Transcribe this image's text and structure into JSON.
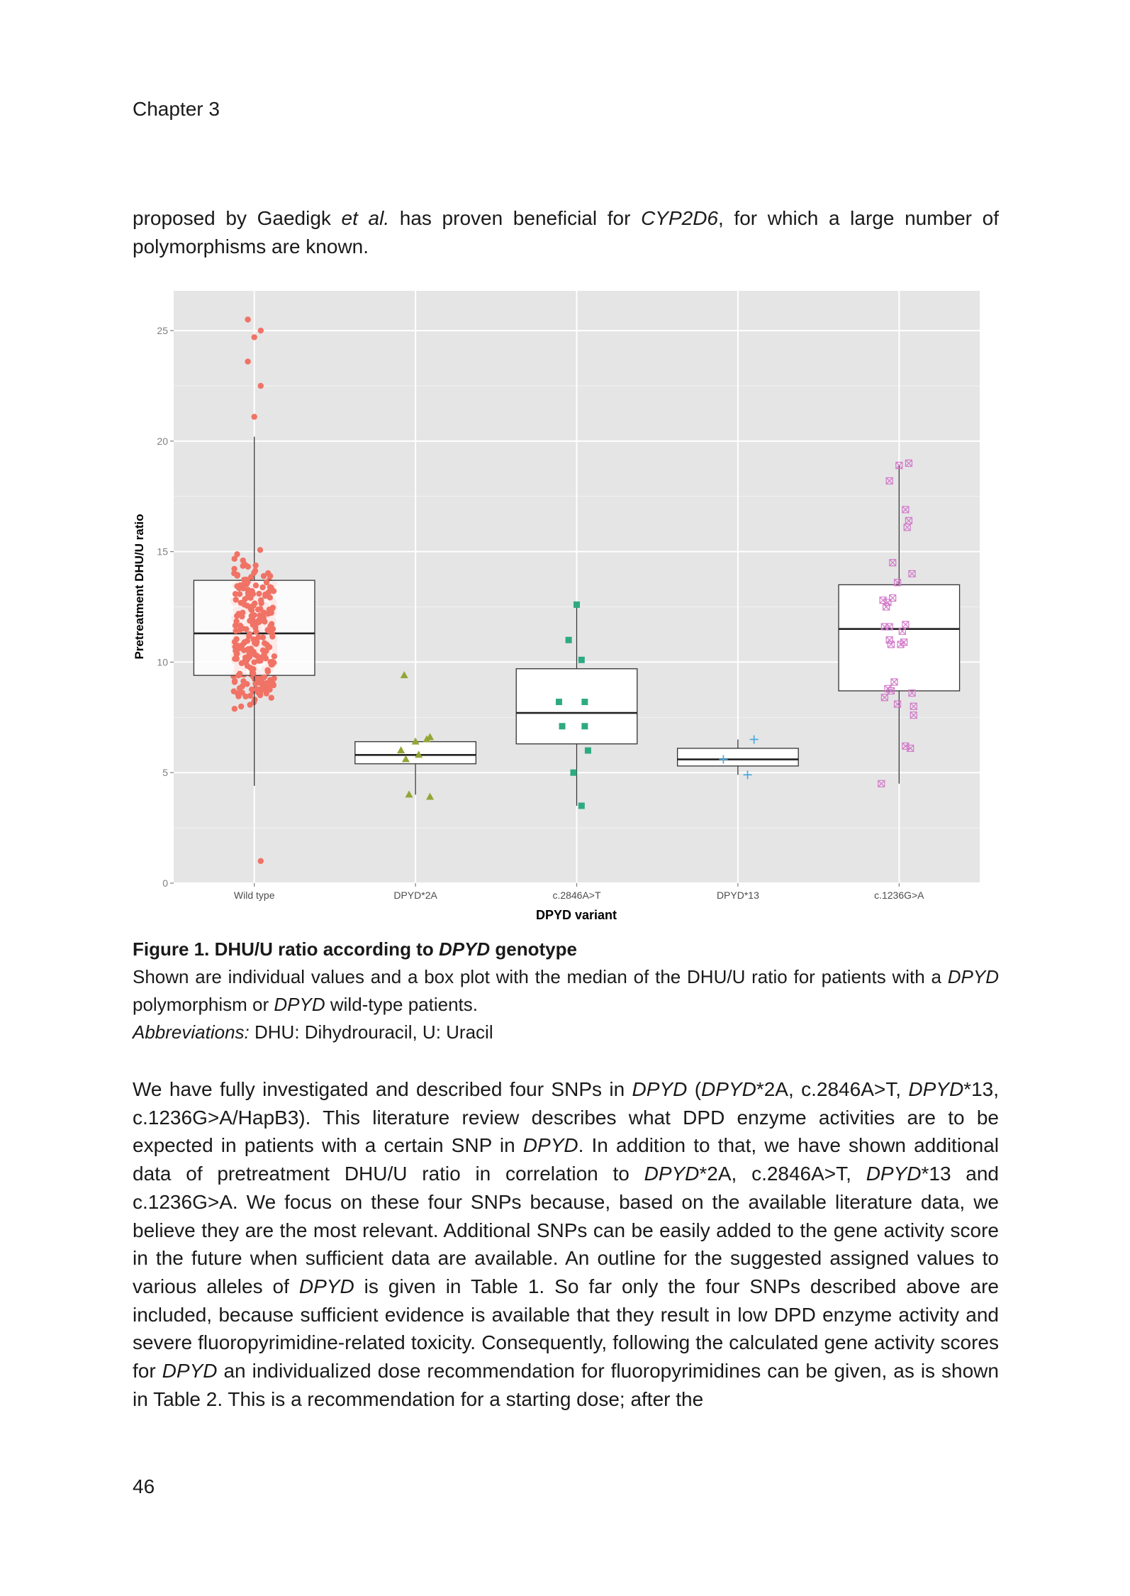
{
  "header": {
    "running_head": "Chapter 3"
  },
  "paragraph1": {
    "t1": "proposed by Gaedigk ",
    "i1": "et al.",
    "t2": " has proven beneficial for ",
    "i2": "CYP2D6",
    "t3": ", for which a large number of polymorphisms are known."
  },
  "caption": {
    "title_prefix": "Figure 1. DHU/U ratio according to ",
    "title_italic": "DPYD",
    "title_suffix": " genotype",
    "b1": "Shown are individual values and a box plot with the median of the DHU/U ratio for patients with a ",
    "b_i1": "DPYD",
    "b2": " polymorphism or ",
    "b_i2": "DPYD",
    "b3": " wild-type patients.",
    "abbr_label": "Abbreviations:",
    "abbr_text": " DHU: Dihydrouracil, U: Uracil"
  },
  "paragraph2": {
    "s1": "We have fully investigated and described four SNPs in ",
    "s2": "DPYD",
    "s3": " (",
    "s4": "DPYD",
    "s5": "*2A, c.2846A>T, ",
    "s6": "DPYD",
    "s7": "*13, c.1236G>A/HapB3). This literature review describes what DPD enzyme activities are to be expected in patients with a certain SNP in ",
    "s8": "DPYD",
    "s9": ". In addition to that, we have shown additional data of pretreatment DHU/U ratio in correlation to ",
    "s10": "DPYD",
    "s11": "*2A, c.2846A>T, ",
    "s12": "DPYD",
    "s13": "*13 and c.1236G>A. We focus on these four SNPs because, based on the available literature data, we believe they are the most relevant. Additional SNPs can be easily added to the gene activity score in the future when sufficient data are available. An outline for the suggested assigned values to various alleles of ",
    "s14": "DPYD",
    "s15": " is given in Table 1. So far only the four SNPs described above are included, because sufficient evidence is available that they result in low DPD enzyme activity and severe fluoropyrimidine-related toxicity. Consequently, following the calculated gene activity scores for ",
    "s16": "DPYD",
    "s17": " an individualized dose recommendation for fluoropyrimidines can be given, as is shown in Table 2. This is a recommendation for a starting dose; after the"
  },
  "footer": {
    "page_number": "46"
  },
  "chart_data": {
    "type": "box",
    "title": "",
    "xlabel": "DPYD variant",
    "ylabel": "Pretreatment DHU/U ratio",
    "ylim": [
      0,
      26.8
    ],
    "yticks": [
      0,
      5,
      10,
      15,
      20,
      25
    ],
    "grid": true,
    "categories": [
      "Wild type",
      "DPYD*2A",
      "c.2846A>T",
      "DPYD*13",
      "c.1236G>A"
    ],
    "colors": {
      "Wild type": "#f07366",
      "DPYD*2A": "#93a535",
      "c.2846A>T": "#2eaa83",
      "DPYD*13": "#41a8e3",
      "c.1236G>A": "#d27ac9"
    },
    "markers": {
      "Wild type": "circle",
      "DPYD*2A": "triangle",
      "c.2846A>T": "square",
      "DPYD*13": "plus",
      "c.1236G>A": "boxed-x"
    },
    "boxes": [
      {
        "name": "Wild type",
        "min": 4.4,
        "q1": 9.4,
        "median": 11.3,
        "q3": 13.7,
        "max": 20.2
      },
      {
        "name": "DPYD*2A",
        "min": 4.0,
        "q1": 5.4,
        "median": 5.8,
        "q3": 6.4,
        "max": 6.5
      },
      {
        "name": "c.2846A>T",
        "min": 3.5,
        "q1": 6.3,
        "median": 7.7,
        "q3": 9.7,
        "max": 12.6
      },
      {
        "name": "DPYD*13",
        "min": 4.9,
        "q1": 5.3,
        "median": 5.6,
        "q3": 6.1,
        "max": 6.5
      },
      {
        "name": "c.1236G>A",
        "min": 4.5,
        "q1": 8.7,
        "median": 11.5,
        "q3": 13.5,
        "max": 18.9
      }
    ],
    "points": {
      "Wild type": {
        "outliers": [
          1.0,
          21.1,
          22.5,
          23.6,
          24.7,
          25.0,
          25.5
        ],
        "n_individual_values": 300
      },
      "DPYD*2A": [
        {
          "dx": -0.07,
          "y": 9.4
        },
        {
          "dx": -0.09,
          "y": 6.0
        },
        {
          "dx": 0.0,
          "y": 6.4
        },
        {
          "dx": 0.07,
          "y": 6.5
        },
        {
          "dx": 0.09,
          "y": 6.6
        },
        {
          "dx": -0.06,
          "y": 5.6
        },
        {
          "dx": 0.02,
          "y": 5.8
        },
        {
          "dx": -0.04,
          "y": 4.0
        },
        {
          "dx": 0.09,
          "y": 3.9
        }
      ],
      "c.2846A>T": [
        {
          "dx": 0.0,
          "y": 12.6
        },
        {
          "dx": -0.05,
          "y": 11.0
        },
        {
          "dx": 0.03,
          "y": 10.1
        },
        {
          "dx": -0.11,
          "y": 8.2
        },
        {
          "dx": 0.05,
          "y": 8.2
        },
        {
          "dx": -0.09,
          "y": 7.1
        },
        {
          "dx": 0.05,
          "y": 7.1
        },
        {
          "dx": 0.07,
          "y": 6.0
        },
        {
          "dx": -0.02,
          "y": 5.0
        },
        {
          "dx": 0.03,
          "y": 3.5
        }
      ],
      "DPYD*13": [
        {
          "dx": 0.1,
          "y": 6.5
        },
        {
          "dx": -0.09,
          "y": 5.6
        },
        {
          "dx": 0.06,
          "y": 4.9
        }
      ],
      "c.1236G>A": [
        {
          "dx": 0.0,
          "y": 18.9
        },
        {
          "dx": 0.06,
          "y": 19.0
        },
        {
          "dx": -0.06,
          "y": 18.2
        },
        {
          "dx": 0.04,
          "y": 16.9
        },
        {
          "dx": 0.06,
          "y": 16.4
        },
        {
          "dx": 0.05,
          "y": 16.1
        },
        {
          "dx": -0.04,
          "y": 14.5
        },
        {
          "dx": 0.08,
          "y": 14.0
        },
        {
          "dx": -0.01,
          "y": 13.6
        },
        {
          "dx": -0.04,
          "y": 12.9
        },
        {
          "dx": -0.1,
          "y": 12.8
        },
        {
          "dx": -0.07,
          "y": 12.7
        },
        {
          "dx": -0.08,
          "y": 12.5
        },
        {
          "dx": 0.04,
          "y": 11.7
        },
        {
          "dx": -0.09,
          "y": 11.6
        },
        {
          "dx": -0.06,
          "y": 11.6
        },
        {
          "dx": 0.02,
          "y": 11.4
        },
        {
          "dx": -0.06,
          "y": 11.0
        },
        {
          "dx": 0.03,
          "y": 10.9
        },
        {
          "dx": -0.05,
          "y": 10.8
        },
        {
          "dx": 0.01,
          "y": 10.8
        },
        {
          "dx": -0.03,
          "y": 9.1
        },
        {
          "dx": -0.07,
          "y": 8.8
        },
        {
          "dx": -0.05,
          "y": 8.7
        },
        {
          "dx": 0.08,
          "y": 8.6
        },
        {
          "dx": -0.09,
          "y": 8.4
        },
        {
          "dx": -0.01,
          "y": 8.1
        },
        {
          "dx": 0.09,
          "y": 8.0
        },
        {
          "dx": 0.09,
          "y": 7.6
        },
        {
          "dx": 0.04,
          "y": 6.2
        },
        {
          "dx": 0.07,
          "y": 6.1
        },
        {
          "dx": -0.11,
          "y": 4.5
        }
      ]
    }
  }
}
